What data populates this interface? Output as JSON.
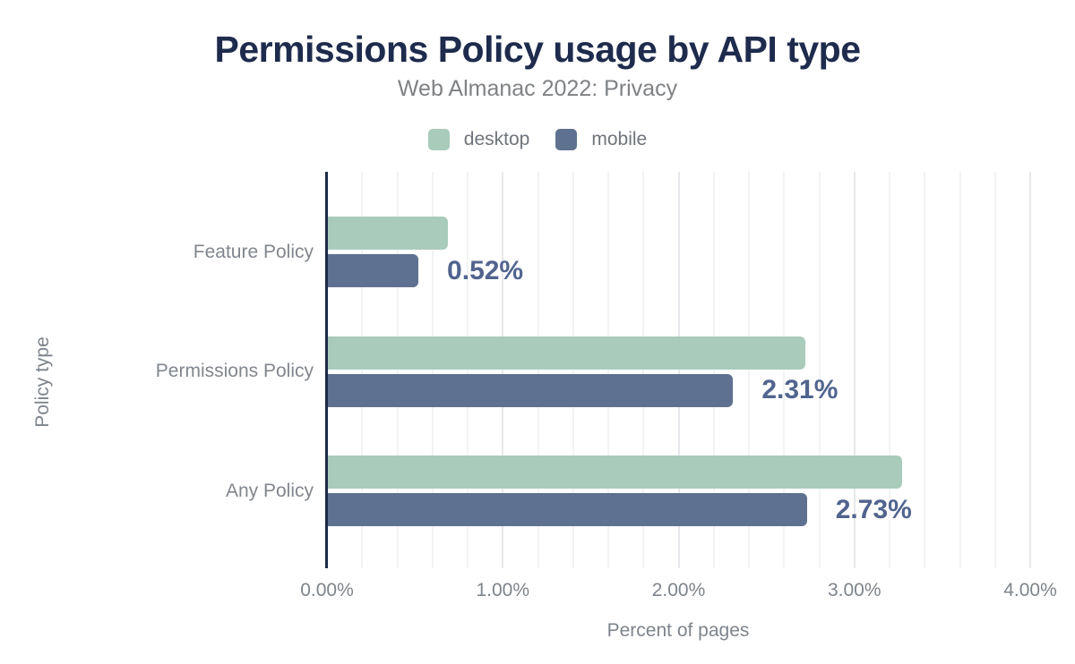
{
  "header": {
    "title": "Permissions Policy usage by API type",
    "subtitle": "Web Almanac 2022: Privacy"
  },
  "legend": {
    "items": [
      {
        "label": "desktop",
        "color": "#a9cbbc"
      },
      {
        "label": "mobile",
        "color": "#5f7190"
      }
    ]
  },
  "chart_data": {
    "type": "bar",
    "orientation": "horizontal",
    "title": "Permissions Policy usage by API type",
    "subtitle": "Web Almanac 2022: Privacy",
    "categories": [
      "Feature Policy",
      "Permissions Policy",
      "Any Policy"
    ],
    "series": [
      {
        "name": "desktop",
        "color": "#a9cbbc",
        "values": [
          0.69,
          2.72,
          3.27
        ]
      },
      {
        "name": "mobile",
        "color": "#5f7190",
        "values": [
          0.52,
          2.31,
          2.73
        ]
      }
    ],
    "data_labels": {
      "series": "mobile",
      "values": [
        "0.52%",
        "2.31%",
        "2.73%"
      ],
      "color": "#51648e"
    },
    "xlabel": "Percent of pages",
    "ylabel": "Policy type",
    "xlim": [
      0,
      4
    ],
    "x_ticks": [
      {
        "value": 0,
        "label": "0.00%"
      },
      {
        "value": 1,
        "label": "1.00%"
      },
      {
        "value": 2,
        "label": "2.00%"
      },
      {
        "value": 3,
        "label": "3.00%"
      },
      {
        "value": 4,
        "label": "4.00%"
      }
    ],
    "grid": {
      "on": true,
      "minor_step": 0.2,
      "major_step": 1
    },
    "legend_position": "top"
  },
  "colors": {
    "title": "#1e2b4d",
    "subtitle": "#7f8285",
    "axis_line": "#1c2a47",
    "tick_label": "#7e848c",
    "grid_minor": "#f2f3f5",
    "grid_major": "#e7e8eb",
    "background": "#ffffff"
  }
}
